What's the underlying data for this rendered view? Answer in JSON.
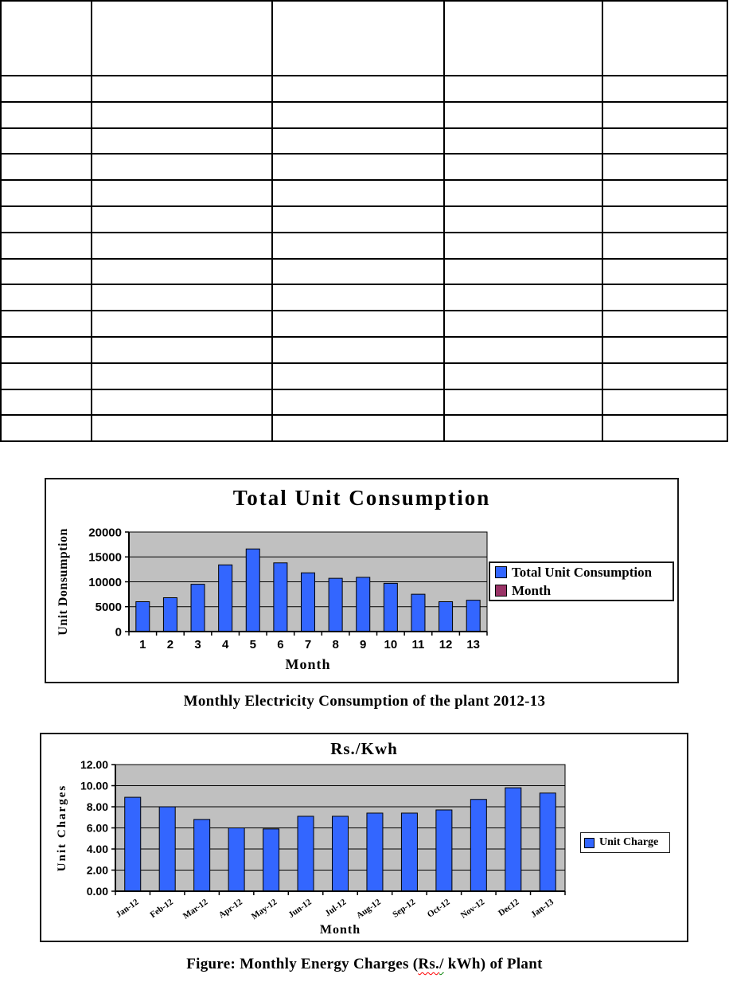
{
  "document": {
    "table": {
      "column_count": 5,
      "header_row_count": 1,
      "data_row_count": 14,
      "cells_text": ""
    },
    "figure1": {
      "caption": "Monthly Electricity Consumption of the plant 2012-13"
    },
    "figure2": {
      "caption_parts": {
        "prefix": "Figure: Monthly Energy Charges (",
        "rs": "Rs.",
        "slash": "/",
        "suffix": " kWh) of Plant"
      },
      "spellcheck_underline_colors": {
        "rs": "#ff0000",
        "slash": "#008000"
      }
    }
  },
  "chart_data": [
    {
      "type": "bar",
      "title": "Total Unit Consumption",
      "xlabel": "Month",
      "ylabel": "Unit Donsumption",
      "categories": [
        "1",
        "2",
        "3",
        "4",
        "5",
        "6",
        "7",
        "8",
        "9",
        "10",
        "11",
        "12",
        "13"
      ],
      "series": [
        {
          "name": "Total Unit Consumption",
          "values": [
            6000,
            6800,
            9500,
            13400,
            16600,
            13800,
            11800,
            10700,
            10900,
            9700,
            7500,
            6000,
            6300
          ]
        }
      ],
      "legend": [
        {
          "label": "Total Unit Consumption",
          "color": "#3366FF"
        },
        {
          "label": "Month",
          "color": "#993366"
        }
      ],
      "legend_position": "right",
      "ylim": [
        0,
        20000
      ],
      "ytick_labels": [
        "0",
        "5000",
        "10000",
        "15000",
        "20000"
      ],
      "grid": true,
      "bar_color": "#3366FF",
      "bar_border_color": "#000000",
      "plot_bg_color": "#C0C0C0"
    },
    {
      "type": "bar",
      "title": "Rs./Kwh",
      "xlabel": "Month",
      "ylabel": "Unit Charges",
      "categories": [
        "Jan-12",
        "Feb-12",
        "Mar-12",
        "Apr-12",
        "May-12",
        "Jun-12",
        "Jul-12",
        "Aug-12",
        "Sep-12",
        "Oct-12",
        "Nov-12",
        "Dec12",
        "Jan-13"
      ],
      "series": [
        {
          "name": "Unit Charge",
          "values": [
            8.9,
            8.0,
            6.8,
            6.0,
            5.9,
            7.1,
            7.1,
            7.4,
            7.4,
            7.7,
            8.7,
            9.8,
            9.3
          ]
        }
      ],
      "legend": [
        {
          "label": "Unit Charge",
          "color": "#3366FF"
        }
      ],
      "legend_position": "right",
      "ylim": [
        0,
        12
      ],
      "ytick_labels": [
        "0.00",
        "2.00",
        "4.00",
        "6.00",
        "8.00",
        "10.00",
        "12.00"
      ],
      "grid": true,
      "bar_color": "#3366FF",
      "bar_border_color": "#000000",
      "plot_bg_color": "#C0C0C0"
    }
  ]
}
